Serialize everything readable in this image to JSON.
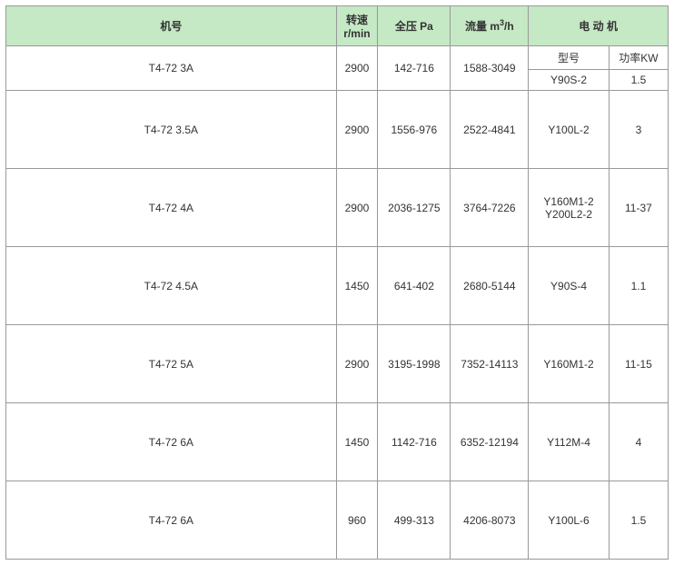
{
  "headers": {
    "machine": "机号",
    "speed": "转速r/min",
    "pressure": "全压 Pa",
    "flow_prefix": "流量 m",
    "flow_sup": "3",
    "flow_suffix": "/h",
    "motor": "电  动 机",
    "model": "型号",
    "power": "功率KW"
  },
  "rows": [
    {
      "machine": "T4-72 3A",
      "speed": "2900",
      "pressure": "142-716",
      "flow": "1588-3049",
      "model": "Y90S-2",
      "power": "1.5",
      "first": true
    },
    {
      "machine": "T4-72 3.5A",
      "speed": "2900",
      "pressure": "1556-976",
      "flow": "2522-4841",
      "model": "Y100L-2",
      "power": "3"
    },
    {
      "machine": "T4-72 4A",
      "speed": "2900",
      "pressure": "2036-1275",
      "flow": "3764-7226",
      "model": "Y160M1-2 Y200L2-2",
      "power": "11-37"
    },
    {
      "machine": "T4-72 4.5A",
      "speed": "1450",
      "pressure": "641-402",
      "flow": "2680-5144",
      "model": "Y90S-4",
      "power": "1.1"
    },
    {
      "machine": "T4-72 5A",
      "speed": "2900",
      "pressure": "3195-1998",
      "flow": "7352-14113",
      "model": "Y160M1-2",
      "power": "11-15"
    },
    {
      "machine": "T4-72 6A",
      "speed": "1450",
      "pressure": "1142-716",
      "flow": "6352-12194",
      "model": "Y112M-4",
      "power": "4"
    },
    {
      "machine": "T4-72 6A",
      "speed": "960",
      "pressure": "499-313",
      "flow": "4206-8073",
      "model": "Y100L-6",
      "power": "1.5"
    }
  ]
}
